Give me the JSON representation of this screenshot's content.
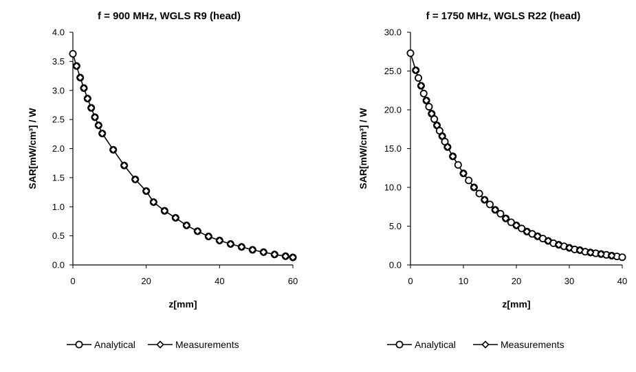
{
  "chart_data": [
    {
      "type": "line",
      "title": "f = 900 MHz, WGLS R9 (head)",
      "xlabel": "z[mm]",
      "ylabel": "SAR[mW/cm³] / W",
      "xlim": [
        0,
        60
      ],
      "ylim": [
        0,
        4
      ],
      "xticks": [
        "0",
        "20",
        "40",
        "60"
      ],
      "yticks": [
        "0.0",
        "0.5",
        "1.0",
        "1.5",
        "2.0",
        "2.5",
        "3.0",
        "3.5",
        "4.0"
      ],
      "legend_position": "bottom",
      "series": [
        {
          "name": "Analytical",
          "marker": "circle",
          "x": [
            0,
            1,
            2,
            3,
            4,
            5,
            6,
            7,
            8,
            11,
            14,
            17,
            20,
            22,
            25,
            28,
            31,
            34,
            37,
            40,
            43,
            46,
            49,
            52,
            55,
            58,
            60
          ],
          "y": [
            3.63,
            3.42,
            3.22,
            3.04,
            2.86,
            2.7,
            2.54,
            2.4,
            2.26,
            1.98,
            1.71,
            1.47,
            1.27,
            1.08,
            0.93,
            0.81,
            0.68,
            0.58,
            0.49,
            0.42,
            0.36,
            0.31,
            0.26,
            0.22,
            0.18,
            0.15,
            0.13
          ]
        },
        {
          "name": "Measurements",
          "marker": "diamond",
          "x": [
            1,
            2,
            3,
            4,
            5,
            6,
            7,
            8,
            11,
            14,
            17,
            20,
            22,
            25,
            28,
            31,
            34,
            37,
            40,
            43,
            46,
            49,
            52,
            55,
            58,
            60
          ],
          "y": [
            3.42,
            3.22,
            3.04,
            2.86,
            2.7,
            2.54,
            2.4,
            2.26,
            1.98,
            1.71,
            1.47,
            1.27,
            1.08,
            0.93,
            0.81,
            0.68,
            0.58,
            0.49,
            0.42,
            0.36,
            0.31,
            0.26,
            0.22,
            0.18,
            0.15,
            0.13
          ]
        }
      ]
    },
    {
      "type": "line",
      "title": "f = 1750 MHz, WGLS R22 (head)",
      "xlabel": "z[mm]",
      "ylabel": "SAR[mW/cm³] / W",
      "xlim": [
        0,
        40
      ],
      "ylim": [
        0,
        30
      ],
      "xticks": [
        "0",
        "10",
        "20",
        "30",
        "40"
      ],
      "yticks": [
        "0.0",
        "5.0",
        "10.0",
        "15.0",
        "20.0",
        "25.0",
        "30.0"
      ],
      "legend_position": "bottom",
      "series": [
        {
          "name": "Analytical",
          "marker": "circle",
          "x": [
            0,
            1,
            1.5,
            2,
            2.5,
            3,
            3.5,
            4,
            4.5,
            5,
            5.5,
            6,
            6.5,
            7,
            8,
            9,
            10,
            11,
            12,
            13,
            14,
            15,
            16,
            17,
            18,
            19,
            20,
            21,
            22,
            23,
            24,
            25,
            26,
            27,
            28,
            29,
            30,
            31,
            32,
            33,
            34,
            35,
            36,
            37,
            38,
            39,
            40
          ],
          "y": [
            27.3,
            25.1,
            24.1,
            23.1,
            22.1,
            21.2,
            20.4,
            19.5,
            18.8,
            18.0,
            17.3,
            16.6,
            15.9,
            15.2,
            14.0,
            12.9,
            11.8,
            10.9,
            10.0,
            9.2,
            8.4,
            7.8,
            7.1,
            6.6,
            6.0,
            5.5,
            5.1,
            4.7,
            4.3,
            4.0,
            3.7,
            3.4,
            3.1,
            2.8,
            2.6,
            2.4,
            2.2,
            2.0,
            1.9,
            1.7,
            1.6,
            1.5,
            1.4,
            1.3,
            1.2,
            1.1,
            1.0
          ]
        },
        {
          "name": "Measurements",
          "marker": "diamond",
          "x": [
            1,
            2,
            3,
            4,
            5,
            6,
            7,
            8,
            10,
            12,
            14,
            16,
            18,
            20,
            22,
            24,
            26,
            28,
            30,
            32,
            34,
            36,
            38
          ],
          "y": [
            25.1,
            23.1,
            21.2,
            19.5,
            18.0,
            16.6,
            15.2,
            14.0,
            11.8,
            10.0,
            8.4,
            7.1,
            6.0,
            5.1,
            4.3,
            3.7,
            3.1,
            2.6,
            2.2,
            1.9,
            1.6,
            1.4,
            1.2
          ]
        }
      ]
    }
  ],
  "legend": {
    "items": [
      {
        "label": "Analytical",
        "marker": "circle"
      },
      {
        "label": "Measurements",
        "marker": "diamond"
      }
    ]
  },
  "colors": {
    "line": "#000000",
    "marker_face": "#ffffff",
    "axis": "#000000",
    "background": "#ffffff"
  }
}
